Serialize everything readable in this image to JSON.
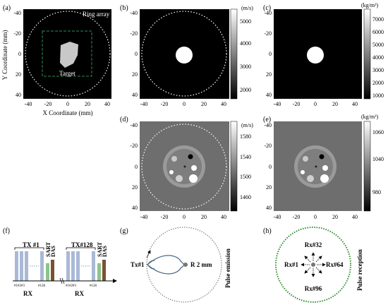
{
  "panels": {
    "a": {
      "label": "(a)",
      "ring_label": "Ring array",
      "target_label": "Target",
      "xlabel": "X Coordinate (mm)",
      "ylabel": "Y Coordinate (mm)",
      "xticks": [
        "-40",
        "-20",
        "0",
        "20",
        "40"
      ],
      "yticks": [
        "-40",
        "-20",
        "0",
        "20",
        "40"
      ]
    },
    "b": {
      "label": "(b)",
      "cb_unit": "(m/s)",
      "cb_ticks": [
        "5000",
        "4000",
        "3000",
        "2000"
      ],
      "xticks": [
        "-40",
        "-20",
        "0",
        "20",
        "40"
      ],
      "yticks": [
        "-40",
        "-20",
        "0",
        "20",
        "40"
      ]
    },
    "c": {
      "label": "(c)",
      "cb_unit": "(kg/m³)",
      "cb_ticks": [
        "7000",
        "6000",
        "5000",
        "4000",
        "3000",
        "2000",
        "1000"
      ],
      "xticks": [
        "-40",
        "-20",
        "0",
        "20",
        "40"
      ],
      "yticks": [
        "-40",
        "-20",
        "0",
        "20",
        "40"
      ]
    },
    "d": {
      "label": "(d)",
      "cb_unit": "(m/s)",
      "cb_ticks": [
        "1580",
        "1540",
        "1500",
        "1460"
      ],
      "xticks": [
        "-40",
        "-20",
        "0",
        "20",
        "40"
      ],
      "yticks": [
        "-40",
        "-20",
        "0",
        "20",
        "40"
      ]
    },
    "e": {
      "label": "(e)",
      "cb_unit": "(kg/m³)",
      "cb_ticks": [
        "1060",
        "1040",
        "980"
      ],
      "xticks": [
        "-40",
        "-20",
        "0",
        "20",
        "40"
      ],
      "yticks": [
        "-40",
        "-20",
        "0",
        "20",
        "40"
      ]
    },
    "f": {
      "label": "(f)",
      "tx1": "TX #1",
      "tx128": "TX#128",
      "sart": "SART",
      "das": "DAS",
      "el_labels": "#1#2#3",
      "el_last": "#128",
      "rx": "RX"
    },
    "g": {
      "label": "(g)",
      "tx": "Tx#1",
      "r": "R 2 mm",
      "side": "Pulse emission"
    },
    "h": {
      "label": "(h)",
      "top": "Rx#32",
      "left": "Rx#1",
      "right": "Rx#64",
      "bottom": "Rx#96",
      "side": "Pulse reception"
    }
  },
  "colors": {
    "black_bg": "#000000",
    "gray_bg": "#6e6e6e",
    "target_fill": "#c8c8c8",
    "ring_dotted": "#ffffff",
    "dash_box": "#2e8b57",
    "blue_bar": "#a9b9d6",
    "green_bar": "#8bc48a",
    "brown_bar": "#7a5230",
    "green_ring": "#2e8b2e",
    "beam": "#4a6a8a"
  }
}
